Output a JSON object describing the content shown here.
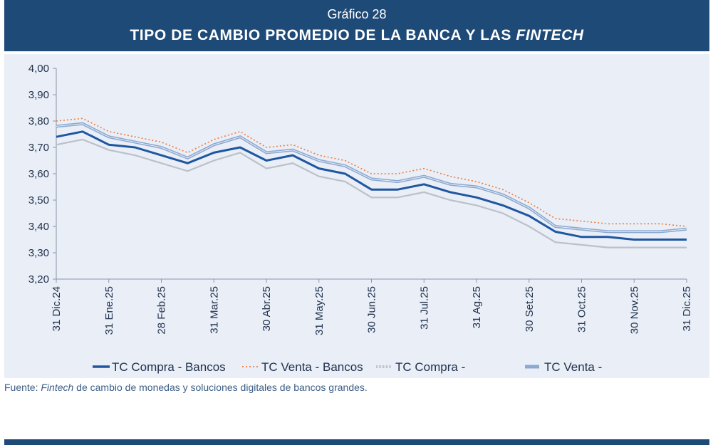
{
  "header": {
    "kicker": "Gráfico 28",
    "title_main": "TIPO DE CAMBIO PROMEDIO DE LA BANCA Y LAS ",
    "title_italic": "FINTECH",
    "background": "#1e4a78"
  },
  "source": {
    "prefix": "Fuente: ",
    "italic": "Fintech",
    "rest": " de cambio de monedas y soluciones digitales de bancos grandes."
  },
  "chart_data": {
    "type": "line",
    "title": "TIPO DE CAMBIO PROMEDIO DE LA BANCA Y LAS FINTECH",
    "xlabel": "",
    "ylabel": "",
    "ylim": [
      3.2,
      4.0
    ],
    "y_ticks": [
      "4,00",
      "3,90",
      "3,80",
      "3,70",
      "3,60",
      "3,50",
      "3,40",
      "3,30",
      "3,20"
    ],
    "x_ticks": [
      "31 Dic.24",
      "31 Ene.25",
      "28 Feb.25",
      "31 Mar.25",
      "30 Abr.25",
      "31 May.25",
      "30 Jun.25",
      "31 Jul.25",
      "31 Ag.25",
      "30 Set.25",
      "31 Oct.25",
      "30 Nov.25",
      "31 Dic.25"
    ],
    "grid": false,
    "legend_position": "bottom",
    "x": [
      "31 Dic.24",
      "15 Ene.25",
      "31 Ene.25",
      "15 Feb.25",
      "28 Feb.25",
      "15 Mar.25",
      "31 Mar.25",
      "15 Abr.25",
      "30 Abr.25",
      "15 May.25",
      "31 May.25",
      "15 Jun.25",
      "30 Jun.25",
      "15 Jul.25",
      "31 Jul.25",
      "15 Ag.25",
      "31 Ag.25",
      "15 Set.25",
      "30 Set.25",
      "15 Oct.25",
      "31 Oct.25",
      "15 Nov.25",
      "30 Nov.25",
      "15 Dic.25",
      "31 Dic.25"
    ],
    "series": [
      {
        "name": "TC Compra - Bancos",
        "style": "solid",
        "color": "#1f56a0",
        "values": [
          3.74,
          3.76,
          3.71,
          3.7,
          3.67,
          3.64,
          3.68,
          3.7,
          3.65,
          3.67,
          3.62,
          3.6,
          3.54,
          3.54,
          3.56,
          3.53,
          3.51,
          3.48,
          3.44,
          3.38,
          3.36,
          3.36,
          3.35,
          3.35,
          3.35
        ]
      },
      {
        "name": "TC Venta - Bancos",
        "style": "dotted",
        "color": "#f07b3a",
        "values": [
          3.8,
          3.81,
          3.76,
          3.74,
          3.72,
          3.68,
          3.73,
          3.76,
          3.7,
          3.71,
          3.67,
          3.65,
          3.6,
          3.6,
          3.62,
          3.59,
          3.57,
          3.54,
          3.49,
          3.43,
          3.42,
          3.41,
          3.41,
          3.41,
          3.4
        ]
      },
      {
        "name": "TC Compra -",
        "style": "light",
        "color": "#bcc1c7",
        "values": [
          3.71,
          3.73,
          3.69,
          3.67,
          3.64,
          3.61,
          3.65,
          3.68,
          3.62,
          3.64,
          3.59,
          3.57,
          3.51,
          3.51,
          3.53,
          3.5,
          3.48,
          3.45,
          3.4,
          3.34,
          3.33,
          3.32,
          3.32,
          3.32,
          3.32
        ]
      },
      {
        "name": "TC Venta -",
        "style": "double",
        "color": "#8aa8d0",
        "values": [
          3.78,
          3.79,
          3.74,
          3.72,
          3.7,
          3.66,
          3.71,
          3.74,
          3.68,
          3.69,
          3.65,
          3.63,
          3.58,
          3.57,
          3.59,
          3.56,
          3.55,
          3.52,
          3.47,
          3.4,
          3.39,
          3.38,
          3.38,
          3.38,
          3.39
        ]
      }
    ]
  }
}
